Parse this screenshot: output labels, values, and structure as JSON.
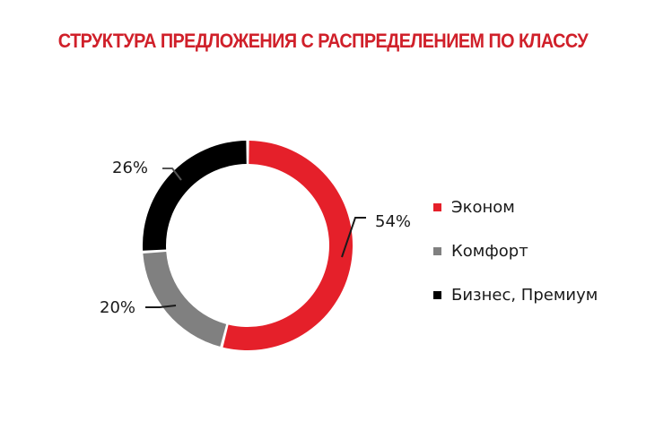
{
  "title": "СТРУКТУРА ПРЕДЛОЖЕНИЯ С РАСПРЕДЕЛЕНИЕМ ПО КЛАССУ",
  "chart_data": {
    "type": "pie",
    "subtype": "donut",
    "title": "СТРУКТУРА ПРЕДЛОЖЕНИЯ С РАСПРЕДЕЛЕНИЕМ ПО КЛАССУ",
    "categories": [
      "Эконом",
      "Комфорт",
      "Бизнес, Премиум"
    ],
    "values": [
      54,
      20,
      26
    ],
    "unit": "%",
    "colors": [
      "#e5202a",
      "#808080",
      "#000000"
    ],
    "data_labels": [
      "54%",
      "20%",
      "26%"
    ],
    "legend_position": "right",
    "start_angle": "top, clockwise"
  },
  "labels": {
    "ekonom": "54%",
    "komfort": "20%",
    "biznes": "26%"
  },
  "legend": [
    {
      "label": "Эконом",
      "color": "#e5202a"
    },
    {
      "label": "Комфорт",
      "color": "#808080"
    },
    {
      "label": "Бизнес, Премиум",
      "color": "#000000"
    }
  ]
}
